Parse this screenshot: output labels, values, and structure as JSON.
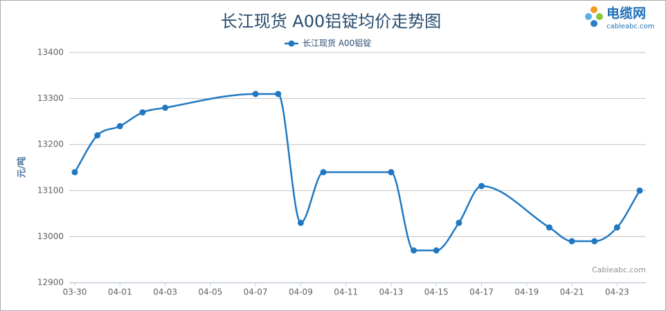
{
  "logo": {
    "name": "电缆网",
    "site": "cableabc.com"
  },
  "chart_data": {
    "type": "line",
    "title": "长江现货 A00铝锭均价走势图",
    "y_label": "元/吨",
    "credits": "Cableabc.com",
    "x": [
      "03-30",
      "03-31",
      "04-01",
      "04-02",
      "04-03",
      "04-07",
      "04-08",
      "04-09",
      "04-10",
      "04-13",
      "04-14",
      "04-15",
      "04-16",
      "04-17",
      "04-20",
      "04-21",
      "04-22",
      "04-23",
      "04-24"
    ],
    "series": [
      {
        "name": "长江现货 A00铝锭",
        "color": "#1f78c1",
        "values": [
          13140,
          13220,
          13240,
          13270,
          13280,
          13310,
          13310,
          13030,
          13140,
          13140,
          12970,
          12970,
          13030,
          13110,
          13020,
          12990,
          12990,
          13020,
          13100
        ]
      }
    ],
    "xticks": [
      "03-30",
      "04-01",
      "04-03",
      "04-05",
      "04-07",
      "04-09",
      "04-11",
      "04-13",
      "04-15",
      "04-17",
      "04-19",
      "04-21",
      "04-23"
    ],
    "ylim": [
      12900,
      13400
    ],
    "yticks": [
      12900,
      13000,
      13100,
      13200,
      13300,
      13400
    ],
    "grid": true,
    "legend": "top",
    "smooth": true
  }
}
